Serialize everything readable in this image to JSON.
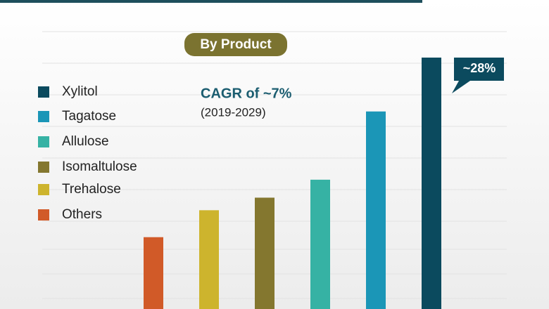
{
  "chart_data": {
    "type": "bar",
    "title": "By Product",
    "categories": [
      "Others",
      "Trehalose",
      "Isomaltulose",
      "Allulose",
      "Tagatose",
      "Xylitol"
    ],
    "values": [
      8,
      11,
      12.4,
      14.4,
      22,
      28
    ],
    "value_labels": [
      null,
      null,
      null,
      null,
      null,
      "~28%"
    ],
    "colors": [
      "#d15a28",
      "#cdb42d",
      "#84772f",
      "#36b2a4",
      "#1b96b7",
      "#0b4a5e"
    ],
    "annotations": [
      "CAGR of ~7%",
      "(2019-2029)"
    ]
  }
}
